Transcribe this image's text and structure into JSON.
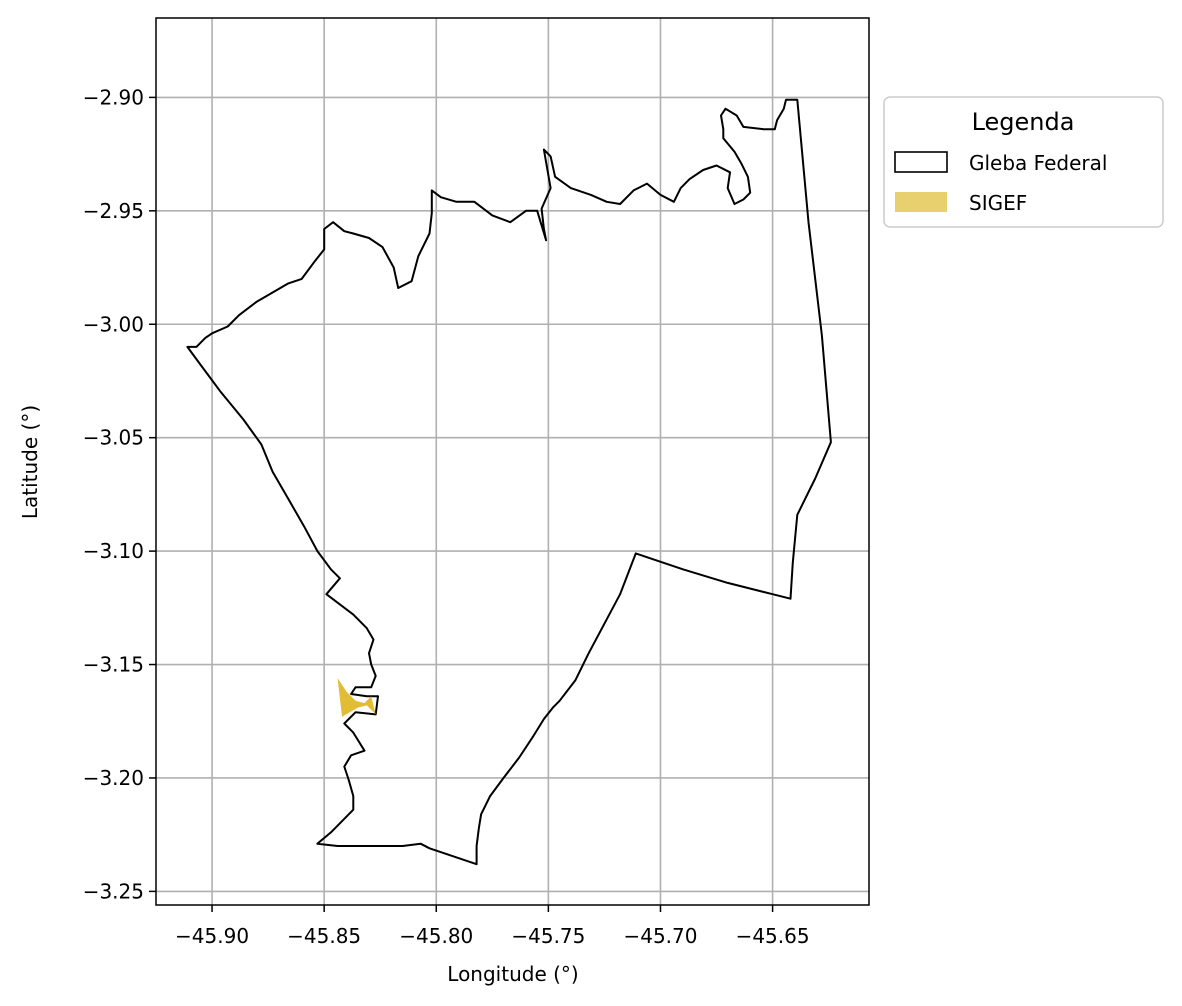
{
  "chart_data": {
    "type": "map",
    "xlabel": "Longitude (°)",
    "ylabel": "Latitude (°)",
    "xlim": [
      -45.925,
      -45.607
    ],
    "ylim": [
      -3.256,
      -2.865
    ],
    "x_ticks": [
      -45.9,
      -45.85,
      -45.8,
      -45.75,
      -45.7,
      -45.65
    ],
    "x_tick_labels": [
      "−45.90",
      "−45.85",
      "−45.80",
      "−45.75",
      "−45.70",
      "−45.65"
    ],
    "y_ticks": [
      -2.9,
      -2.95,
      -3.0,
      -3.05,
      -3.1,
      -3.15,
      -3.2,
      -3.25
    ],
    "y_tick_labels": [
      "−2.90",
      "−2.95",
      "−3.00",
      "−3.05",
      "−3.10",
      "−3.15",
      "−3.20",
      "−3.25"
    ],
    "grid": true,
    "legend": {
      "title": "Legenda",
      "placement": "outside-right",
      "entries": [
        {
          "label": "Gleba Federal",
          "style": "outline",
          "color": "#000000"
        },
        {
          "label": "SIGEF",
          "style": "fill",
          "color": "#e8d06e"
        }
      ]
    },
    "layers": [
      {
        "name": "Gleba Federal",
        "style": "outline",
        "stroke": "#000000",
        "coordinates": [
          [
            -45.911,
            -3.01
          ],
          [
            -45.905,
            -3.018
          ],
          [
            -45.896,
            -3.03
          ],
          [
            -45.886,
            -3.042
          ],
          [
            -45.878,
            -3.053
          ],
          [
            -45.873,
            -3.065
          ],
          [
            -45.866,
            -3.077
          ],
          [
            -45.859,
            -3.089
          ],
          [
            -45.853,
            -3.1
          ],
          [
            -45.847,
            -3.108
          ],
          [
            -45.843,
            -3.112
          ],
          [
            -45.849,
            -3.119
          ],
          [
            -45.837,
            -3.128
          ],
          [
            -45.831,
            -3.134
          ],
          [
            -45.828,
            -3.139
          ],
          [
            -45.83,
            -3.145
          ],
          [
            -45.829,
            -3.15
          ],
          [
            -45.827,
            -3.155
          ],
          [
            -45.829,
            -3.16
          ],
          [
            -45.836,
            -3.16
          ],
          [
            -45.838,
            -3.163
          ],
          [
            -45.831,
            -3.164
          ],
          [
            -45.826,
            -3.164
          ],
          [
            -45.827,
            -3.172
          ],
          [
            -45.836,
            -3.171
          ],
          [
            -45.841,
            -3.176
          ],
          [
            -45.837,
            -3.18
          ],
          [
            -45.832,
            -3.188
          ],
          [
            -45.838,
            -3.19
          ],
          [
            -45.841,
            -3.195
          ],
          [
            -45.839,
            -3.201
          ],
          [
            -45.837,
            -3.208
          ],
          [
            -45.837,
            -3.214
          ],
          [
            -45.847,
            -3.224
          ],
          [
            -45.853,
            -3.229
          ],
          [
            -45.844,
            -3.23
          ],
          [
            -45.831,
            -3.23
          ],
          [
            -45.815,
            -3.23
          ],
          [
            -45.807,
            -3.229
          ],
          [
            -45.803,
            -3.231
          ],
          [
            -45.782,
            -3.238
          ],
          [
            -45.782,
            -3.23
          ],
          [
            -45.781,
            -3.222
          ],
          [
            -45.78,
            -3.216
          ],
          [
            -45.776,
            -3.208
          ],
          [
            -45.77,
            -3.2
          ],
          [
            -45.763,
            -3.191
          ],
          [
            -45.757,
            -3.182
          ],
          [
            -45.752,
            -3.174
          ],
          [
            -45.748,
            -3.169
          ],
          [
            -45.745,
            -3.166
          ],
          [
            -45.738,
            -3.157
          ],
          [
            -45.732,
            -3.145
          ],
          [
            -45.725,
            -3.132
          ],
          [
            -45.718,
            -3.119
          ],
          [
            -45.711,
            -3.101
          ],
          [
            -45.69,
            -3.108
          ],
          [
            -45.67,
            -3.114
          ],
          [
            -45.65,
            -3.119
          ],
          [
            -45.642,
            -3.121
          ],
          [
            -45.641,
            -3.105
          ],
          [
            -45.639,
            -3.084
          ],
          [
            -45.631,
            -3.068
          ],
          [
            -45.624,
            -3.052
          ],
          [
            -45.628,
            -3.005
          ],
          [
            -45.634,
            -2.955
          ],
          [
            -45.639,
            -2.901
          ],
          [
            -45.644,
            -2.901
          ],
          [
            -45.645,
            -2.905
          ],
          [
            -45.648,
            -2.91
          ],
          [
            -45.649,
            -2.914
          ],
          [
            -45.654,
            -2.914
          ],
          [
            -45.663,
            -2.913
          ],
          [
            -45.666,
            -2.908
          ],
          [
            -45.671,
            -2.905
          ],
          [
            -45.673,
            -2.908
          ],
          [
            -45.672,
            -2.914
          ],
          [
            -45.672,
            -2.918
          ],
          [
            -45.667,
            -2.924
          ],
          [
            -45.664,
            -2.929
          ],
          [
            -45.661,
            -2.935
          ],
          [
            -45.66,
            -2.942
          ],
          [
            -45.663,
            -2.945
          ],
          [
            -45.667,
            -2.947
          ],
          [
            -45.67,
            -2.94
          ],
          [
            -45.669,
            -2.933
          ],
          [
            -45.675,
            -2.93
          ],
          [
            -45.681,
            -2.932
          ],
          [
            -45.687,
            -2.936
          ],
          [
            -45.691,
            -2.94
          ],
          [
            -45.694,
            -2.946
          ],
          [
            -45.7,
            -2.943
          ],
          [
            -45.706,
            -2.938
          ],
          [
            -45.712,
            -2.941
          ],
          [
            -45.718,
            -2.947
          ],
          [
            -45.724,
            -2.946
          ],
          [
            -45.731,
            -2.943
          ],
          [
            -45.74,
            -2.94
          ],
          [
            -45.747,
            -2.935
          ],
          [
            -45.749,
            -2.926
          ],
          [
            -45.752,
            -2.923
          ],
          [
            -45.749,
            -2.94
          ],
          [
            -45.753,
            -2.949
          ],
          [
            -45.752,
            -2.958
          ],
          [
            -45.751,
            -2.963
          ],
          [
            -45.755,
            -2.95
          ],
          [
            -45.76,
            -2.95
          ],
          [
            -45.767,
            -2.955
          ],
          [
            -45.775,
            -2.952
          ],
          [
            -45.783,
            -2.946
          ],
          [
            -45.791,
            -2.946
          ],
          [
            -45.798,
            -2.944
          ],
          [
            -45.802,
            -2.941
          ],
          [
            -45.802,
            -2.951
          ],
          [
            -45.803,
            -2.96
          ],
          [
            -45.808,
            -2.97
          ],
          [
            -45.811,
            -2.981
          ],
          [
            -45.817,
            -2.984
          ],
          [
            -45.819,
            -2.975
          ],
          [
            -45.824,
            -2.966
          ],
          [
            -45.83,
            -2.962
          ],
          [
            -45.837,
            -2.96
          ],
          [
            -45.841,
            -2.959
          ],
          [
            -45.846,
            -2.955
          ],
          [
            -45.85,
            -2.958
          ],
          [
            -45.85,
            -2.967
          ],
          [
            -45.854,
            -2.972
          ],
          [
            -45.86,
            -2.98
          ],
          [
            -45.866,
            -2.982
          ],
          [
            -45.873,
            -2.986
          ],
          [
            -45.88,
            -2.99
          ],
          [
            -45.888,
            -2.996
          ],
          [
            -45.893,
            -3.001
          ],
          [
            -45.9,
            -3.004
          ],
          [
            -45.903,
            -3.006
          ],
          [
            -45.907,
            -3.01
          ],
          [
            -45.911,
            -3.01
          ]
        ]
      },
      {
        "name": "SIGEF",
        "style": "fill",
        "fill": "#e0b82a",
        "coordinates": [
          [
            -45.844,
            -3.156
          ],
          [
            -45.84,
            -3.162
          ],
          [
            -45.836,
            -3.166
          ],
          [
            -45.832,
            -3.167
          ],
          [
            -45.829,
            -3.164
          ],
          [
            -45.827,
            -3.172
          ],
          [
            -45.831,
            -3.168
          ],
          [
            -45.835,
            -3.169
          ],
          [
            -45.842,
            -3.173
          ],
          [
            -45.843,
            -3.165
          ],
          [
            -45.844,
            -3.156
          ]
        ]
      }
    ]
  }
}
